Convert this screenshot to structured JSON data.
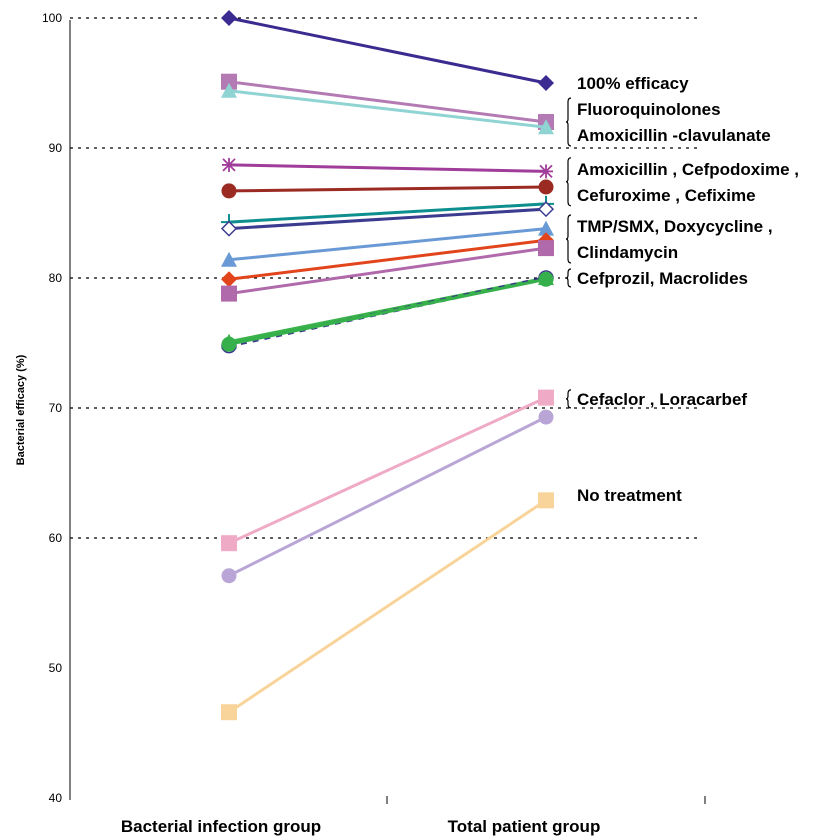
{
  "chart_data": {
    "type": "line",
    "ylabel": "Bacterial efficacy (%)",
    "xlabel": "",
    "ylim": [
      40,
      100
    ],
    "yticks": [
      "40",
      "50",
      "60",
      "70",
      "80",
      "90",
      "100"
    ],
    "grid": "horizontal dotted",
    "categories": [
      "Bacterial infection group",
      "Total patient group"
    ],
    "series": [
      {
        "values": [
          100,
          95
        ],
        "color": "#3b2a8f",
        "marker": "diamond"
      },
      {
        "values": [
          95.1,
          92
        ],
        "color": "#b47ab4",
        "marker": "square"
      },
      {
        "values": [
          94.4,
          91.6
        ],
        "color": "#8fd3d3",
        "marker": "triangle"
      },
      {
        "values": [
          88.7,
          88.2
        ],
        "color": "#a03c9a",
        "marker": "star"
      },
      {
        "values": [
          86.7,
          87
        ],
        "color": "#9b2a22",
        "marker": "circle"
      },
      {
        "values": [
          84.3,
          85.7
        ],
        "color": "#0e8f8f",
        "marker": "plus"
      },
      {
        "values": [
          83.8,
          85.3
        ],
        "color": "#3b3b8f",
        "marker": "diamond-open"
      },
      {
        "values": [
          81.4,
          83.8
        ],
        "color": "#6a9ad6",
        "marker": "triangle"
      },
      {
        "values": [
          79.9,
          82.9
        ],
        "color": "#e2451c",
        "marker": "diamond"
      },
      {
        "values": [
          78.8,
          82.3
        ],
        "color": "#b06aac",
        "marker": "square"
      },
      {
        "values": [
          75.1,
          80
        ],
        "color": "#39b24a",
        "marker": "triangle"
      },
      {
        "values": [
          74.8,
          80
        ],
        "color": "#3a3a8c",
        "marker": "circle-open",
        "dashed": true
      },
      {
        "values": [
          74.9,
          79.9
        ],
        "color": "#35b04a",
        "marker": "circle"
      },
      {
        "values": [
          59.6,
          70.8
        ],
        "color": "#efaac6",
        "marker": "square"
      },
      {
        "values": [
          57.1,
          69.3
        ],
        "color": "#b9a6d6",
        "marker": "circle"
      },
      {
        "values": [
          46.6,
          62.9
        ],
        "color": "#f9d49a",
        "marker": "square"
      }
    ],
    "annotations": [
      {
        "lines": [
          "100% efficacy"
        ],
        "at": 95,
        "brace": false
      },
      {
        "lines": [
          "Fluoroquinolones",
          "Amoxicillin -clavulanate"
        ],
        "at": 92,
        "brace": true
      },
      {
        "lines": [
          "Amoxicillin , Cefpodoxime ,",
          "Cefuroxime , Cefixime"
        ],
        "at": 87.4,
        "brace": true
      },
      {
        "lines": [
          "TMP/SMX,  Doxycycline ,",
          "Clindamycin"
        ],
        "at": 83,
        "brace": true
      },
      {
        "lines": [
          "Cefprozil, Macrolides"
        ],
        "at": 80,
        "brace": true
      },
      {
        "lines": [
          "Cefaclor , Loracarbef"
        ],
        "at": 70.7,
        "brace": true
      },
      {
        "lines": [
          "No treatment"
        ],
        "at": 63.3,
        "brace": false
      }
    ]
  }
}
